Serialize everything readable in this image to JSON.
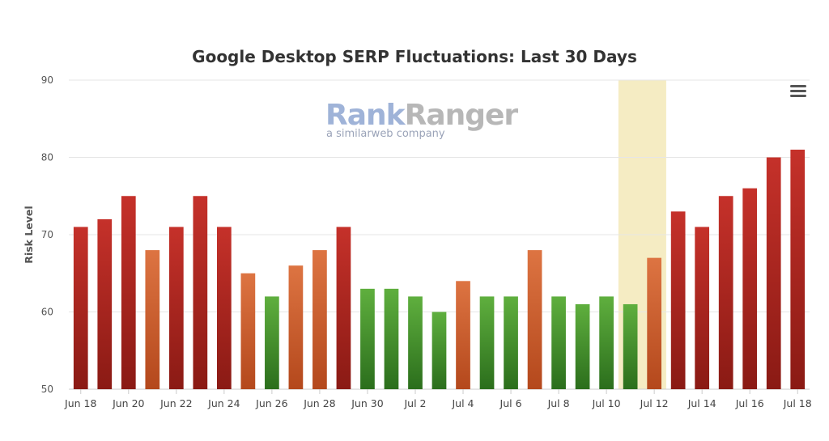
{
  "colors": {
    "red_top": "#c5312a",
    "red_bottom": "#8a1a14",
    "orange_top": "#dd7442",
    "orange_bottom": "#b4481c",
    "green_top": "#5faf3e",
    "green_bottom": "#2b6e1c",
    "highlight": "#f5ecc3",
    "brand_rank": "#9fb3d8",
    "brand_ranger": "#b7b7b7"
  },
  "menu_icon": "hamburger-menu-icon",
  "watermark": {
    "main_left": "Rank",
    "main_right": "Ranger",
    "sub": "a similarweb company"
  },
  "chart_data": {
    "type": "bar",
    "title": "Google Desktop SERP Fluctuations: Last 30 Days",
    "ylabel": "Risk Level",
    "xlabel": "",
    "ylim": [
      50,
      90
    ],
    "yticks": [
      50,
      60,
      70,
      80,
      90
    ],
    "grid": true,
    "legend": "none",
    "categories": [
      "Jun 18",
      "Jun 19",
      "Jun 20",
      "Jun 21",
      "Jun 22",
      "Jun 23",
      "Jun 24",
      "Jun 25",
      "Jun 26",
      "Jun 27",
      "Jun 28",
      "Jun 29",
      "Jun 30",
      "Jul 1",
      "Jul 2",
      "Jul 3",
      "Jul 4",
      "Jul 5",
      "Jul 6",
      "Jul 7",
      "Jul 8",
      "Jul 9",
      "Jul 10",
      "Jul 11",
      "Jul 12",
      "Jul 13",
      "Jul 14",
      "Jul 15",
      "Jul 16",
      "Jul 17",
      "Jul 18"
    ],
    "xtick_labels": [
      "Jun 18",
      "Jun 20",
      "Jun 22",
      "Jun 24",
      "Jun 26",
      "Jun 28",
      "Jun 30",
      "Jul 2",
      "Jul 4",
      "Jul 6",
      "Jul 8",
      "Jul 10",
      "Jul 12",
      "Jul 14",
      "Jul 16",
      "Jul 18"
    ],
    "values": [
      71,
      72,
      75,
      68,
      71,
      75,
      71,
      65,
      62,
      66,
      68,
      71,
      63,
      63,
      62,
      60,
      64,
      62,
      62,
      68,
      62,
      61,
      62,
      61,
      67,
      73,
      71,
      75,
      76,
      80,
      81
    ],
    "bar_colors": [
      "red",
      "red",
      "red",
      "orange",
      "red",
      "red",
      "red",
      "orange",
      "green",
      "orange",
      "orange",
      "red",
      "green",
      "green",
      "green",
      "green",
      "orange",
      "green",
      "green",
      "orange",
      "green",
      "green",
      "green",
      "green",
      "orange",
      "red",
      "red",
      "red",
      "red",
      "red",
      "red"
    ],
    "highlight_range": [
      "Jul 11",
      "Jul 12"
    ]
  }
}
